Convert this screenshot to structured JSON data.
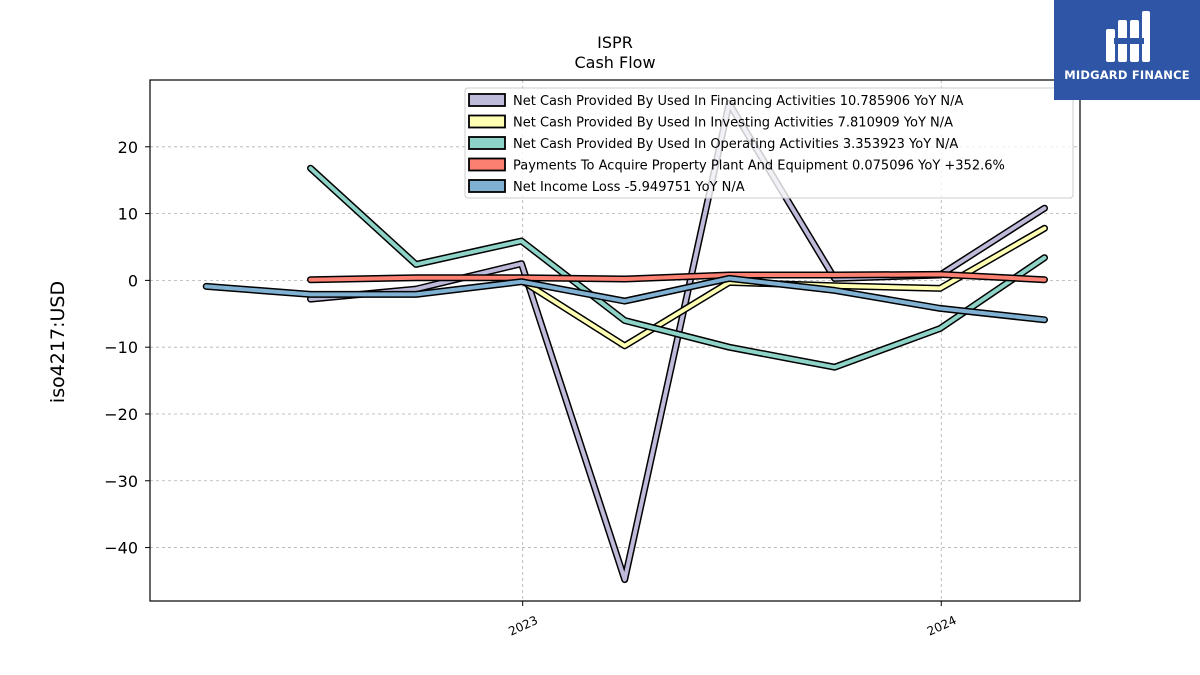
{
  "brand": {
    "name": "MIDGARD FINANCE",
    "bg_color": "#2f56a6"
  },
  "chart_data": {
    "type": "line",
    "title": "ISPR",
    "subtitle": "Cash Flow",
    "ylabel": "iso4217:USD",
    "xlabel": "",
    "ylim": [
      -48,
      30
    ],
    "y_ticks": [
      20,
      10,
      0,
      -10,
      -20,
      -30,
      -40
    ],
    "x_range": [
      "2022-02-10",
      "2024-05-01"
    ],
    "x_ticks": [
      {
        "date": "2023-01-01",
        "label": "2023"
      },
      {
        "date": "2024-01-01",
        "label": "2024"
      }
    ],
    "grid": true,
    "legend_position": "top-right",
    "x": [
      "2022-03-31",
      "2022-06-30",
      "2022-09-30",
      "2022-12-31",
      "2023-03-31",
      "2023-06-30",
      "2023-09-30",
      "2023-12-31",
      "2024-03-31"
    ],
    "series": [
      {
        "name": "Net Cash Provided By Used In Financing Activities",
        "legend_label": "Net Cash Provided By Used In Financing Activities  10.785906 YoY N/A",
        "color": "#bebada",
        "values": [
          null,
          -2.8,
          -1.3,
          2.5,
          -44.8,
          26.5,
          0.3,
          0.8,
          10.8
        ]
      },
      {
        "name": "Net Cash Provided By Used In Investing Activities",
        "legend_label": "Net Cash Provided By Used In Investing Activities  7.810909 YoY N/A",
        "color": "#ffffb3",
        "values": [
          null,
          null,
          null,
          0.0,
          -9.8,
          -0.3,
          -0.8,
          -1.2,
          7.8
        ]
      },
      {
        "name": "Net Cash Provided By Used In Operating Activities",
        "legend_label": "Net Cash Provided By Used In Operating Activities  3.353923 YoY N/A",
        "color": "#8dd3c7",
        "values": [
          null,
          16.8,
          2.4,
          5.9,
          -6.0,
          -10.0,
          -13.0,
          -7.2,
          3.4
        ]
      },
      {
        "name": "Payments To Acquire Property Plant And Equipment",
        "legend_label": "Payments To Acquire Property Plant And Equipment  0.075096 YoY +352.6%",
        "color": "#fb8072",
        "values": [
          null,
          0.1,
          0.4,
          0.4,
          0.2,
          0.8,
          0.8,
          0.9,
          0.1
        ]
      },
      {
        "name": "Net Income Loss",
        "legend_label": "Net Income Loss  -5.949751 YoY N/A",
        "color": "#80b1d3",
        "values": [
          -0.9,
          -2.1,
          -2.1,
          -0.2,
          -3.1,
          0.3,
          -1.5,
          -4.2,
          -5.9
        ]
      }
    ]
  }
}
